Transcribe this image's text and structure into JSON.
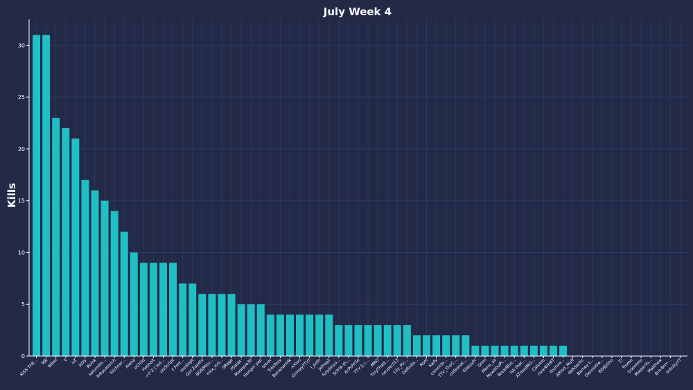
{
  "chart_data": {
    "type": "bar",
    "title": "July Week 4",
    "xlabel": "",
    "ylabel": "Kills",
    "ylim": [
      0,
      32.5
    ],
    "yticks": [
      0,
      5,
      10,
      15,
      20,
      25,
      30
    ],
    "grid": true,
    "colors": {
      "bar": "#1fbfc4",
      "background": "#222a48",
      "grid": "#2e3858",
      "text": "#ffffff"
    },
    "categories": [
      "KISS THE...",
      "§§§",
      "Mikel",
      "§",
      "uZ",
      "azzy",
      "Roink",
      "saturnite...",
      "Arkauzovich",
      "Slicknar...",
      "Alena",
      "eChild",
      "Hasnait",
      "-r·F·Z | iad...",
      "zzzScript",
      "† Fort...",
      "reedlopt",
      "Girl Zayets",
      "BD§|Mitu...",
      "nicx_rod...",
      "§Rage",
      "ilSalas-",
      "Moonpie36",
      "Hunger yep",
      "tetrer",
      "TrésTezy",
      "Bananamilk",
      "·xXion",
      "GrimzyTTV?",
      "I_pain",
      "jefrog2",
      "fulydinoo...",
      "SOYIA th...",
      "AcPohtSe",
      "TTV || c...",
      "MRG",
      "TinyThatt...",
      "nevpect13",
      "Lily_Pic...",
      "Definite...",
      "Roof",
      "Kaify",
      "convicte...",
      "TTV_TheC...",
      "cstlesnat...",
      "GlaszyFr",
      "Grim",
      "Mone_za",
      "NyxelDuPl...",
      "BreadBut...",
      "lsb that...",
      "ATmadMO...",
      "Calvero",
      "riverWHAT",
      "ttv/nva...",
      "Alfred_Muff",
      "dkRdactic",
      "Barney t...",
      "DennisSw...",
      "BD§|dino",
      "Zi",
      "fixxee",
      "brainless",
      "MasterYo...",
      "Matthew",
      "Brn-Brrr-...",
      "InfinityYT"
    ],
    "values": [
      31,
      31,
      23,
      22,
      21,
      17,
      16,
      15,
      14,
      12,
      10,
      9,
      9,
      9,
      9,
      7,
      7,
      6,
      6,
      6,
      6,
      5,
      5,
      5,
      4,
      4,
      4,
      4,
      4,
      4,
      4,
      3,
      3,
      3,
      3,
      3,
      3,
      3,
      3,
      2,
      2,
      2,
      2,
      2,
      2,
      1,
      1,
      1,
      1,
      1,
      1,
      1,
      1,
      1,
      1,
      0,
      0,
      0,
      0,
      0,
      0,
      0,
      0,
      0,
      0,
      0,
      0
    ]
  }
}
